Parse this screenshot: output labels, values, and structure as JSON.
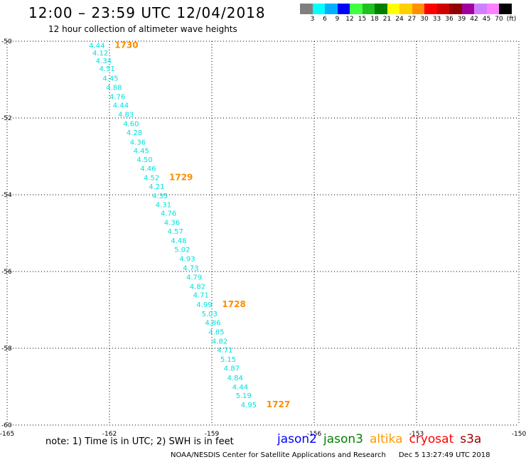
{
  "header": {
    "title": "12:00 – 23:59 UTC 12/04/2018",
    "subtitle": "12 hour collection of altimeter wave heights"
  },
  "colorbar": {
    "colors": [
      "#808080",
      "#00ffff",
      "#00b0ff",
      "#0000ff",
      "#40ff40",
      "#20c020",
      "#008000",
      "#ffff00",
      "#ffd000",
      "#ff9000",
      "#ff0000",
      "#d00000",
      "#900000",
      "#a000a0",
      "#d080ff",
      "#ff80ff",
      "#000000"
    ],
    "labels": [
      "3",
      "6",
      "9",
      "12",
      "15",
      "18",
      "21",
      "24",
      "27",
      "30",
      "33",
      "36",
      "39",
      "42",
      "45",
      "70",
      "(ft)"
    ]
  },
  "chart_data": {
    "type": "scatter",
    "xlim": [
      -165,
      -150
    ],
    "ylim": [
      -60,
      -50
    ],
    "x_ticks": [
      "-165",
      "-162",
      "-159",
      "-156",
      "-153",
      "-150"
    ],
    "y_ticks": [
      "-50",
      "-52",
      "-54",
      "-56",
      "-58",
      "-60"
    ],
    "grid": true,
    "series": [
      {
        "name": "altika",
        "color": "#00e0e0",
        "points": [
          {
            "x": -162.6,
            "y": -50.18,
            "label": "4.44"
          },
          {
            "x": -162.5,
            "y": -50.37,
            "label": "4.12"
          },
          {
            "x": -162.4,
            "y": -50.57,
            "label": "4.34"
          },
          {
            "x": -162.3,
            "y": -50.78,
            "label": "4.51"
          },
          {
            "x": -162.2,
            "y": -51.03,
            "label": "4.45"
          },
          {
            "x": -162.1,
            "y": -51.27,
            "label": "4.88"
          },
          {
            "x": -162.0,
            "y": -51.51,
            "label": "4.76"
          },
          {
            "x": -161.9,
            "y": -51.73,
            "label": "4.44"
          },
          {
            "x": -161.75,
            "y": -51.97,
            "label": "4.83"
          },
          {
            "x": -161.6,
            "y": -52.21,
            "label": "4.60"
          },
          {
            "x": -161.5,
            "y": -52.44,
            "label": "4.28"
          },
          {
            "x": -161.4,
            "y": -52.69,
            "label": "4.36"
          },
          {
            "x": -161.3,
            "y": -52.92,
            "label": "4.45"
          },
          {
            "x": -161.2,
            "y": -53.15,
            "label": "4.50"
          },
          {
            "x": -161.1,
            "y": -53.38,
            "label": "4.46"
          },
          {
            "x": -161.0,
            "y": -53.62,
            "label": "4.52"
          },
          {
            "x": -160.85,
            "y": -53.85,
            "label": "4.21"
          },
          {
            "x": -160.75,
            "y": -54.09,
            "label": "4.35"
          },
          {
            "x": -160.65,
            "y": -54.32,
            "label": "4.31"
          },
          {
            "x": -160.5,
            "y": -54.55,
            "label": "4.76"
          },
          {
            "x": -160.4,
            "y": -54.79,
            "label": "4.36"
          },
          {
            "x": -160.3,
            "y": -55.02,
            "label": "4.57"
          },
          {
            "x": -160.2,
            "y": -55.26,
            "label": "4.48"
          },
          {
            "x": -160.1,
            "y": -55.49,
            "label": "5.02"
          },
          {
            "x": -159.95,
            "y": -55.73,
            "label": "4.93"
          },
          {
            "x": -159.85,
            "y": -55.97,
            "label": "4.73"
          },
          {
            "x": -159.75,
            "y": -56.21,
            "label": "4.79"
          },
          {
            "x": -159.65,
            "y": -56.45,
            "label": "4.82"
          },
          {
            "x": -159.55,
            "y": -56.68,
            "label": "4.71"
          },
          {
            "x": -159.45,
            "y": -56.93,
            "label": "4.99"
          },
          {
            "x": -159.3,
            "y": -57.17,
            "label": "5.03"
          },
          {
            "x": -159.2,
            "y": -57.4,
            "label": "4.86"
          },
          {
            "x": -159.1,
            "y": -57.64,
            "label": "4.85"
          },
          {
            "x": -159.0,
            "y": -57.88,
            "label": "4.82"
          },
          {
            "x": -158.85,
            "y": -58.11,
            "label": "4.71"
          },
          {
            "x": -158.75,
            "y": -58.35,
            "label": "5.15"
          },
          {
            "x": -158.65,
            "y": -58.58,
            "label": "4.87"
          },
          {
            "x": -158.55,
            "y": -58.83,
            "label": "4.84"
          },
          {
            "x": -158.4,
            "y": -59.07,
            "label": "4.44"
          },
          {
            "x": -158.3,
            "y": -59.3,
            "label": "5.19"
          },
          {
            "x": -158.15,
            "y": -59.54,
            "label": "4.95"
          }
        ]
      }
    ],
    "annotations": [
      {
        "text": "1730",
        "x": -161.85,
        "y": -50.18,
        "color": "#ff8c00"
      },
      {
        "text": "1729",
        "x": -160.25,
        "y": -53.62,
        "color": "#ff8c00"
      },
      {
        "text": "1728",
        "x": -158.7,
        "y": -56.93,
        "color": "#ff8c00"
      },
      {
        "text": "1727",
        "x": -157.4,
        "y": -59.54,
        "color": "#ff8c00"
      }
    ]
  },
  "footer": {
    "note": "note:  1) Time is in UTC;  2) SWH is in feet",
    "satellites": [
      {
        "name": "jason2",
        "color": "#0000ff"
      },
      {
        "name": "jason3",
        "color": "#008000"
      },
      {
        "name": "altika",
        "color": "#ff9900"
      },
      {
        "name": "cryosat",
        "color": "#ff0000"
      },
      {
        "name": "s3a",
        "color": "#a00000"
      }
    ],
    "credit": "NOAA/NESDIS Center for Satellite Applications and Research",
    "timestamp": "Dec  5 13:27:49 UTC 2018"
  }
}
